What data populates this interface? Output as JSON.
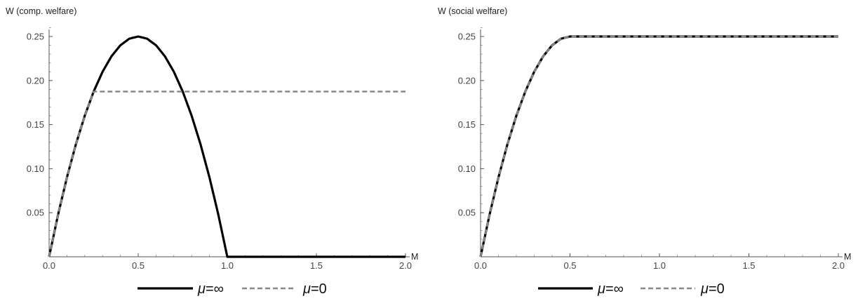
{
  "chart_data": [
    {
      "type": "line",
      "title": "",
      "ylabel": "W (comp. welfare)",
      "xlabel": "M",
      "xlim": [
        0,
        2
      ],
      "ylim": [
        0,
        0.25
      ],
      "x_ticks": [
        0,
        0.5,
        1,
        1.5,
        2
      ],
      "x_tick_labels": [
        "0.0",
        "0.5",
        "1.0",
        "1.5",
        "2.0"
      ],
      "y_ticks": [
        0.05,
        0.1,
        0.15,
        0.2,
        0.25
      ],
      "y_tick_labels": [
        "0.05",
        "0.10",
        "0.15",
        "0.20",
        "0.25"
      ],
      "grid": false,
      "legend_position": "bottom",
      "series": [
        {
          "name": "μ=∞",
          "style": "solid",
          "color": "#000000",
          "x": [
            0,
            0.05,
            0.1,
            0.15,
            0.2,
            0.25,
            0.3,
            0.35,
            0.4,
            0.45,
            0.5,
            0.55,
            0.6,
            0.65,
            0.7,
            0.75,
            0.8,
            0.85,
            0.9,
            0.95,
            1.0,
            1.5,
            2.0
          ],
          "y": [
            0,
            0.0475,
            0.09,
            0.1275,
            0.16,
            0.1875,
            0.21,
            0.2275,
            0.24,
            0.2475,
            0.25,
            0.2475,
            0.24,
            0.2275,
            0.21,
            0.1875,
            0.16,
            0.1275,
            0.09,
            0.0475,
            0,
            0,
            0
          ]
        },
        {
          "name": "μ=0",
          "style": "dashed",
          "color": "#888888",
          "x": [
            0,
            0.05,
            0.1,
            0.15,
            0.2,
            0.25,
            0.5,
            1.0,
            1.5,
            2.0
          ],
          "y": [
            0,
            0.0475,
            0.09,
            0.1275,
            0.16,
            0.1875,
            0.1875,
            0.1875,
            0.1875,
            0.1875
          ]
        }
      ]
    },
    {
      "type": "line",
      "title": "",
      "ylabel": "W (social welfare)",
      "xlabel": "M",
      "xlim": [
        0,
        2
      ],
      "ylim": [
        0,
        0.25
      ],
      "x_ticks": [
        0,
        0.5,
        1,
        1.5,
        2
      ],
      "x_tick_labels": [
        "0.0",
        "0.5",
        "1.0",
        "1.5",
        "2.0"
      ],
      "y_ticks": [
        0.05,
        0.1,
        0.15,
        0.2,
        0.25
      ],
      "y_tick_labels": [
        "0.05",
        "0.10",
        "0.15",
        "0.20",
        "0.25"
      ],
      "grid": false,
      "legend_position": "bottom",
      "series": [
        {
          "name": "μ=∞",
          "style": "solid",
          "color": "#000000",
          "x": [
            0,
            0.05,
            0.1,
            0.15,
            0.2,
            0.25,
            0.3,
            0.35,
            0.4,
            0.45,
            0.5,
            1.0,
            1.5,
            2.0
          ],
          "y": [
            0,
            0.0475,
            0.09,
            0.1275,
            0.16,
            0.1875,
            0.21,
            0.2275,
            0.24,
            0.2475,
            0.25,
            0.25,
            0.25,
            0.25
          ]
        },
        {
          "name": "μ=0",
          "style": "dashed",
          "color": "#888888",
          "x": [
            0,
            0.05,
            0.1,
            0.15,
            0.2,
            0.25,
            0.3,
            0.35,
            0.4,
            0.45,
            0.5,
            1.0,
            1.5,
            2.0
          ],
          "y": [
            0,
            0.0475,
            0.09,
            0.1275,
            0.16,
            0.1875,
            0.21,
            0.2275,
            0.24,
            0.2475,
            0.25,
            0.25,
            0.25,
            0.25
          ]
        }
      ]
    }
  ]
}
